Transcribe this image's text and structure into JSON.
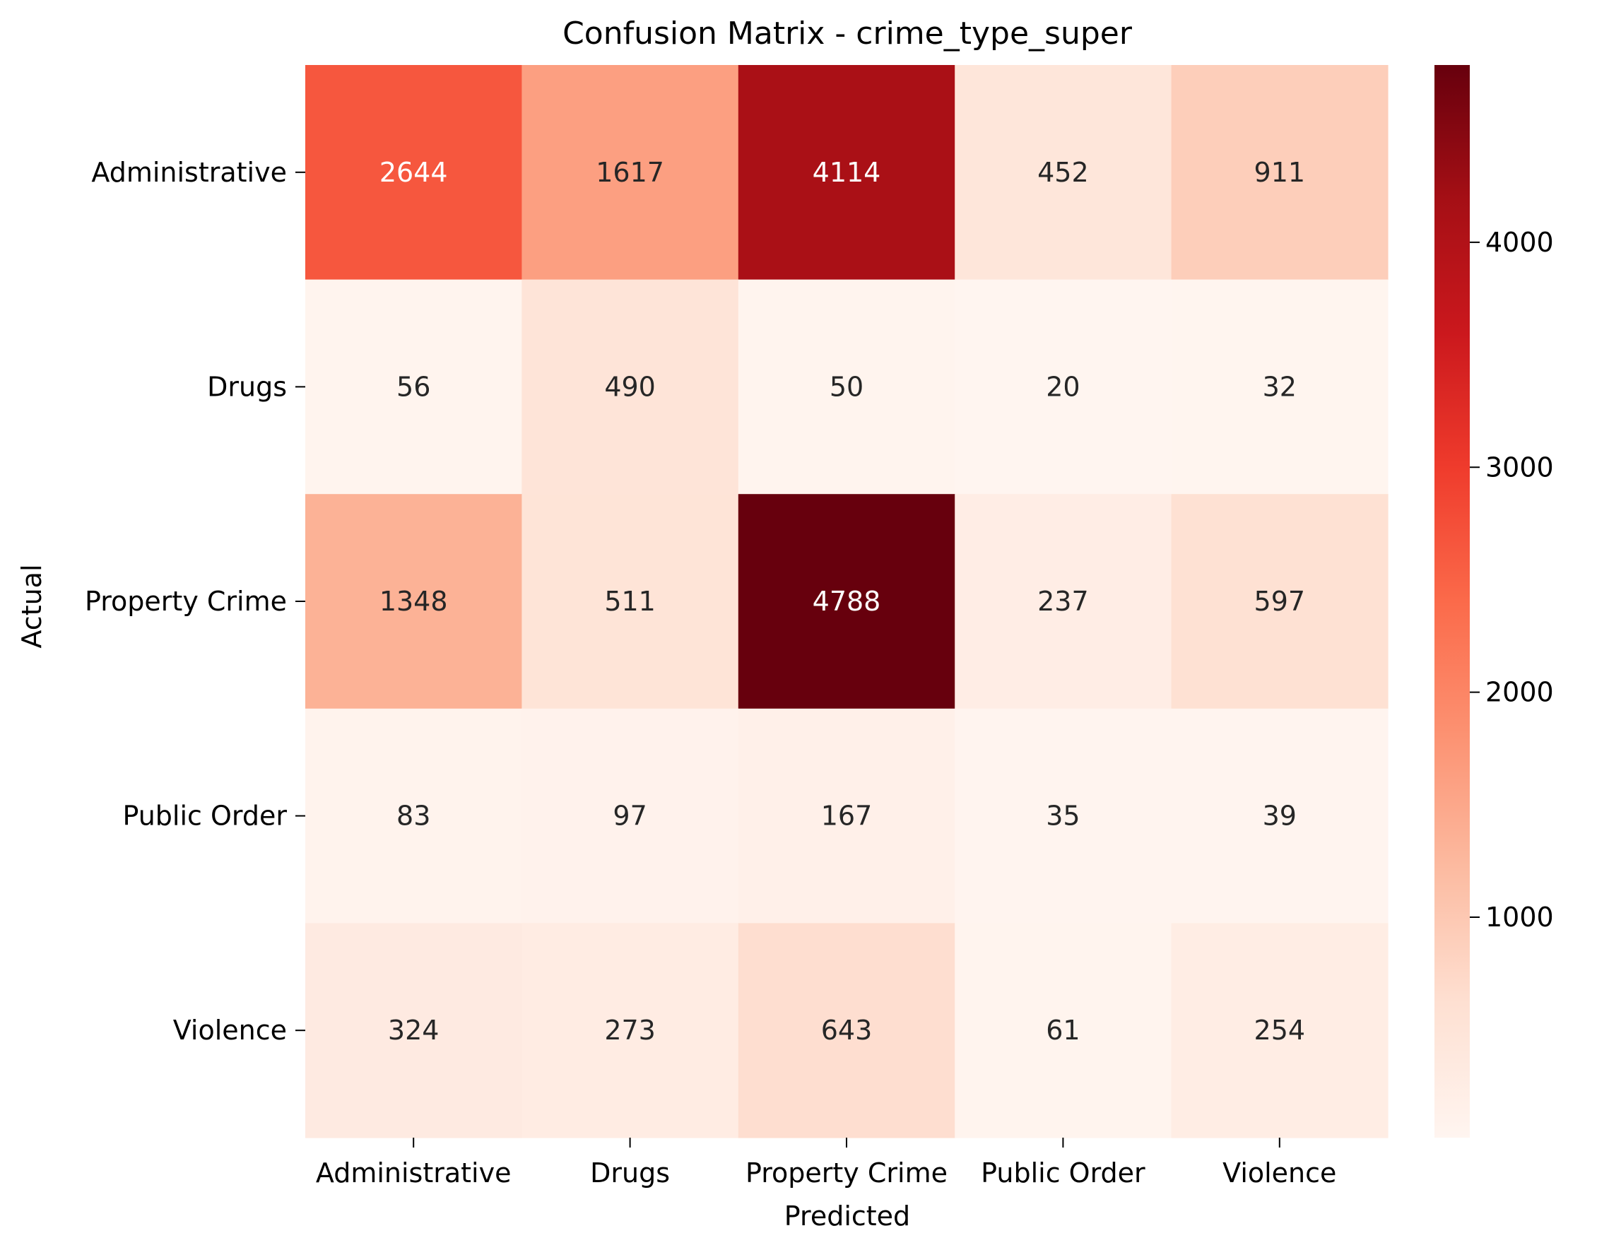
{
  "chart_data": {
    "type": "heatmap",
    "title": "Confusion Matrix - crime_type_super",
    "xlabel": "Predicted",
    "ylabel": "Actual",
    "x_categories": [
      "Administrative",
      "Drugs",
      "Property Crime",
      "Public Order",
      "Violence"
    ],
    "y_categories": [
      "Administrative",
      "Drugs",
      "Property Crime",
      "Public Order",
      "Violence"
    ],
    "values": [
      [
        2644,
        1617,
        4114,
        452,
        911
      ],
      [
        56,
        490,
        50,
        20,
        32
      ],
      [
        1348,
        511,
        4788,
        237,
        597
      ],
      [
        83,
        97,
        167,
        35,
        39
      ],
      [
        324,
        273,
        643,
        61,
        254
      ]
    ],
    "colormap": "Reds",
    "colorbar": {
      "range": [
        20,
        4788
      ],
      "ticks": [
        1000,
        2000,
        3000,
        4000
      ],
      "tick_labels": [
        "1000",
        "2000",
        "3000",
        "4000"
      ]
    }
  }
}
